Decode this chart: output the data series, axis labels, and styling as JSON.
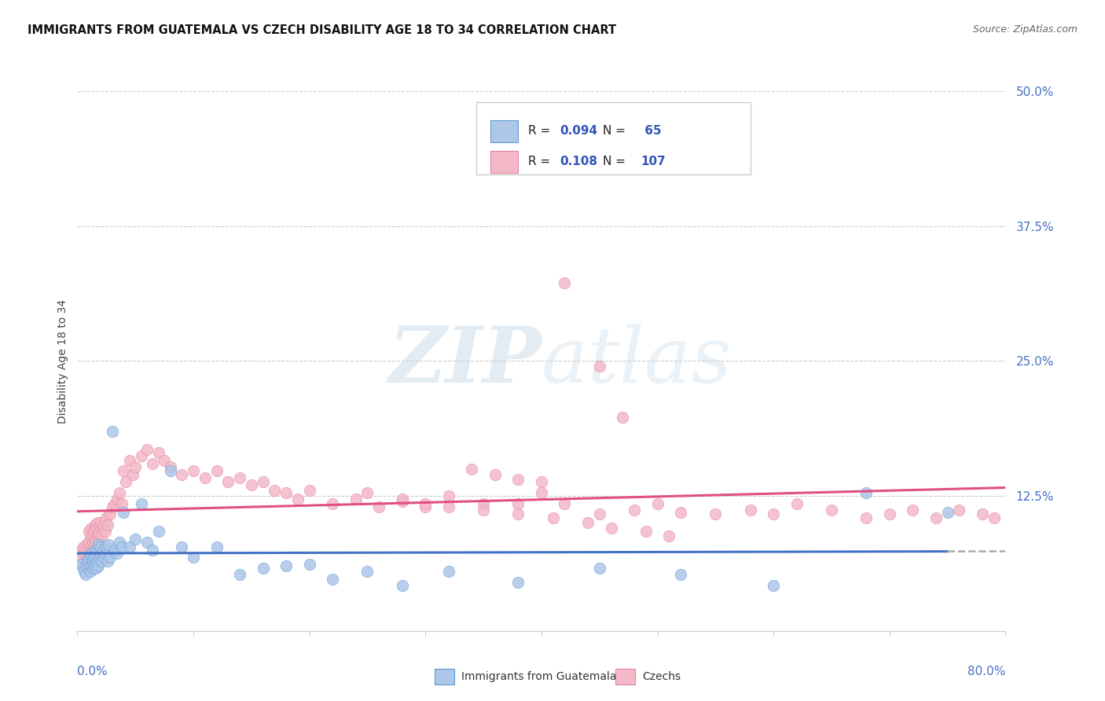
{
  "title": "IMMIGRANTS FROM GUATEMALA VS CZECH DISABILITY AGE 18 TO 34 CORRELATION CHART",
  "source": "Source: ZipAtlas.com",
  "ylabel": "Disability Age 18 to 34",
  "R1": 0.094,
  "N1": 65,
  "R2": 0.108,
  "N2": 107,
  "color1": "#aec6e8",
  "color2": "#f4b8c8",
  "color1_edge": "#5b9bd5",
  "color2_edge": "#e084a0",
  "trend_color1": "#4472c4",
  "trend_color2": "#e05080",
  "trend_dash_color": "#aaaaaa",
  "legend_label1": "Immigrants from Guatemala",
  "legend_label2": "Czechs",
  "xlim": [
    0.0,
    0.8
  ],
  "ylim": [
    0.0,
    0.5
  ],
  "yticks": [
    0.0,
    0.125,
    0.25,
    0.375,
    0.5
  ],
  "ytick_labels": [
    "",
    "12.5%",
    "25.0%",
    "37.5%",
    "50.0%"
  ],
  "blue_x": [
    0.003,
    0.005,
    0.006,
    0.007,
    0.008,
    0.009,
    0.01,
    0.01,
    0.011,
    0.011,
    0.012,
    0.012,
    0.013,
    0.013,
    0.014,
    0.014,
    0.015,
    0.015,
    0.016,
    0.016,
    0.017,
    0.017,
    0.018,
    0.018,
    0.019,
    0.02,
    0.02,
    0.021,
    0.022,
    0.023,
    0.024,
    0.025,
    0.026,
    0.027,
    0.028,
    0.03,
    0.032,
    0.034,
    0.036,
    0.038,
    0.04,
    0.045,
    0.05,
    0.055,
    0.06,
    0.065,
    0.07,
    0.08,
    0.09,
    0.1,
    0.12,
    0.14,
    0.16,
    0.18,
    0.2,
    0.22,
    0.25,
    0.28,
    0.32,
    0.38,
    0.45,
    0.52,
    0.6,
    0.68,
    0.75
  ],
  "blue_y": [
    0.062,
    0.058,
    0.055,
    0.052,
    0.06,
    0.065,
    0.058,
    0.068,
    0.055,
    0.07,
    0.06,
    0.072,
    0.058,
    0.065,
    0.06,
    0.068,
    0.062,
    0.075,
    0.058,
    0.07,
    0.065,
    0.075,
    0.06,
    0.08,
    0.068,
    0.07,
    0.078,
    0.065,
    0.075,
    0.068,
    0.072,
    0.078,
    0.065,
    0.08,
    0.068,
    0.185,
    0.075,
    0.072,
    0.082,
    0.078,
    0.11,
    0.078,
    0.085,
    0.118,
    0.082,
    0.075,
    0.092,
    0.148,
    0.078,
    0.068,
    0.078,
    0.052,
    0.058,
    0.06,
    0.062,
    0.048,
    0.055,
    0.042,
    0.055,
    0.045,
    0.058,
    0.052,
    0.042,
    0.128,
    0.11
  ],
  "pink_x": [
    0.003,
    0.004,
    0.005,
    0.006,
    0.007,
    0.008,
    0.009,
    0.01,
    0.01,
    0.011,
    0.011,
    0.012,
    0.012,
    0.013,
    0.013,
    0.014,
    0.014,
    0.015,
    0.015,
    0.016,
    0.016,
    0.017,
    0.017,
    0.018,
    0.018,
    0.019,
    0.02,
    0.02,
    0.021,
    0.022,
    0.023,
    0.024,
    0.025,
    0.026,
    0.028,
    0.03,
    0.032,
    0.034,
    0.036,
    0.038,
    0.04,
    0.042,
    0.045,
    0.048,
    0.05,
    0.055,
    0.06,
    0.065,
    0.07,
    0.075,
    0.08,
    0.09,
    0.1,
    0.11,
    0.12,
    0.13,
    0.14,
    0.15,
    0.16,
    0.17,
    0.18,
    0.19,
    0.2,
    0.22,
    0.24,
    0.26,
    0.28,
    0.3,
    0.32,
    0.35,
    0.38,
    0.4,
    0.42,
    0.45,
    0.48,
    0.5,
    0.52,
    0.55,
    0.58,
    0.6,
    0.62,
    0.65,
    0.68,
    0.7,
    0.72,
    0.74,
    0.76,
    0.78,
    0.79,
    0.34,
    0.36,
    0.38,
    0.4,
    0.25,
    0.28,
    0.3,
    0.32,
    0.35,
    0.38,
    0.41,
    0.44,
    0.46,
    0.49,
    0.51,
    0.42,
    0.45,
    0.47
  ],
  "pink_y": [
    0.068,
    0.075,
    0.078,
    0.072,
    0.065,
    0.08,
    0.075,
    0.082,
    0.092,
    0.078,
    0.088,
    0.075,
    0.095,
    0.082,
    0.088,
    0.078,
    0.092,
    0.085,
    0.098,
    0.082,
    0.095,
    0.088,
    0.1,
    0.085,
    0.095,
    0.09,
    0.095,
    0.1,
    0.088,
    0.095,
    0.098,
    0.092,
    0.105,
    0.098,
    0.108,
    0.115,
    0.118,
    0.122,
    0.128,
    0.118,
    0.148,
    0.138,
    0.158,
    0.145,
    0.152,
    0.162,
    0.168,
    0.155,
    0.165,
    0.158,
    0.152,
    0.145,
    0.148,
    0.142,
    0.148,
    0.138,
    0.142,
    0.135,
    0.138,
    0.13,
    0.128,
    0.122,
    0.13,
    0.118,
    0.122,
    0.115,
    0.12,
    0.115,
    0.125,
    0.118,
    0.118,
    0.128,
    0.118,
    0.108,
    0.112,
    0.118,
    0.11,
    0.108,
    0.112,
    0.108,
    0.118,
    0.112,
    0.105,
    0.108,
    0.112,
    0.105,
    0.112,
    0.108,
    0.105,
    0.15,
    0.145,
    0.14,
    0.138,
    0.128,
    0.122,
    0.118,
    0.115,
    0.112,
    0.108,
    0.105,
    0.1,
    0.095,
    0.092,
    0.088,
    0.322,
    0.245,
    0.198
  ],
  "watermark_zip": "ZIP",
  "watermark_atlas": "atlas"
}
